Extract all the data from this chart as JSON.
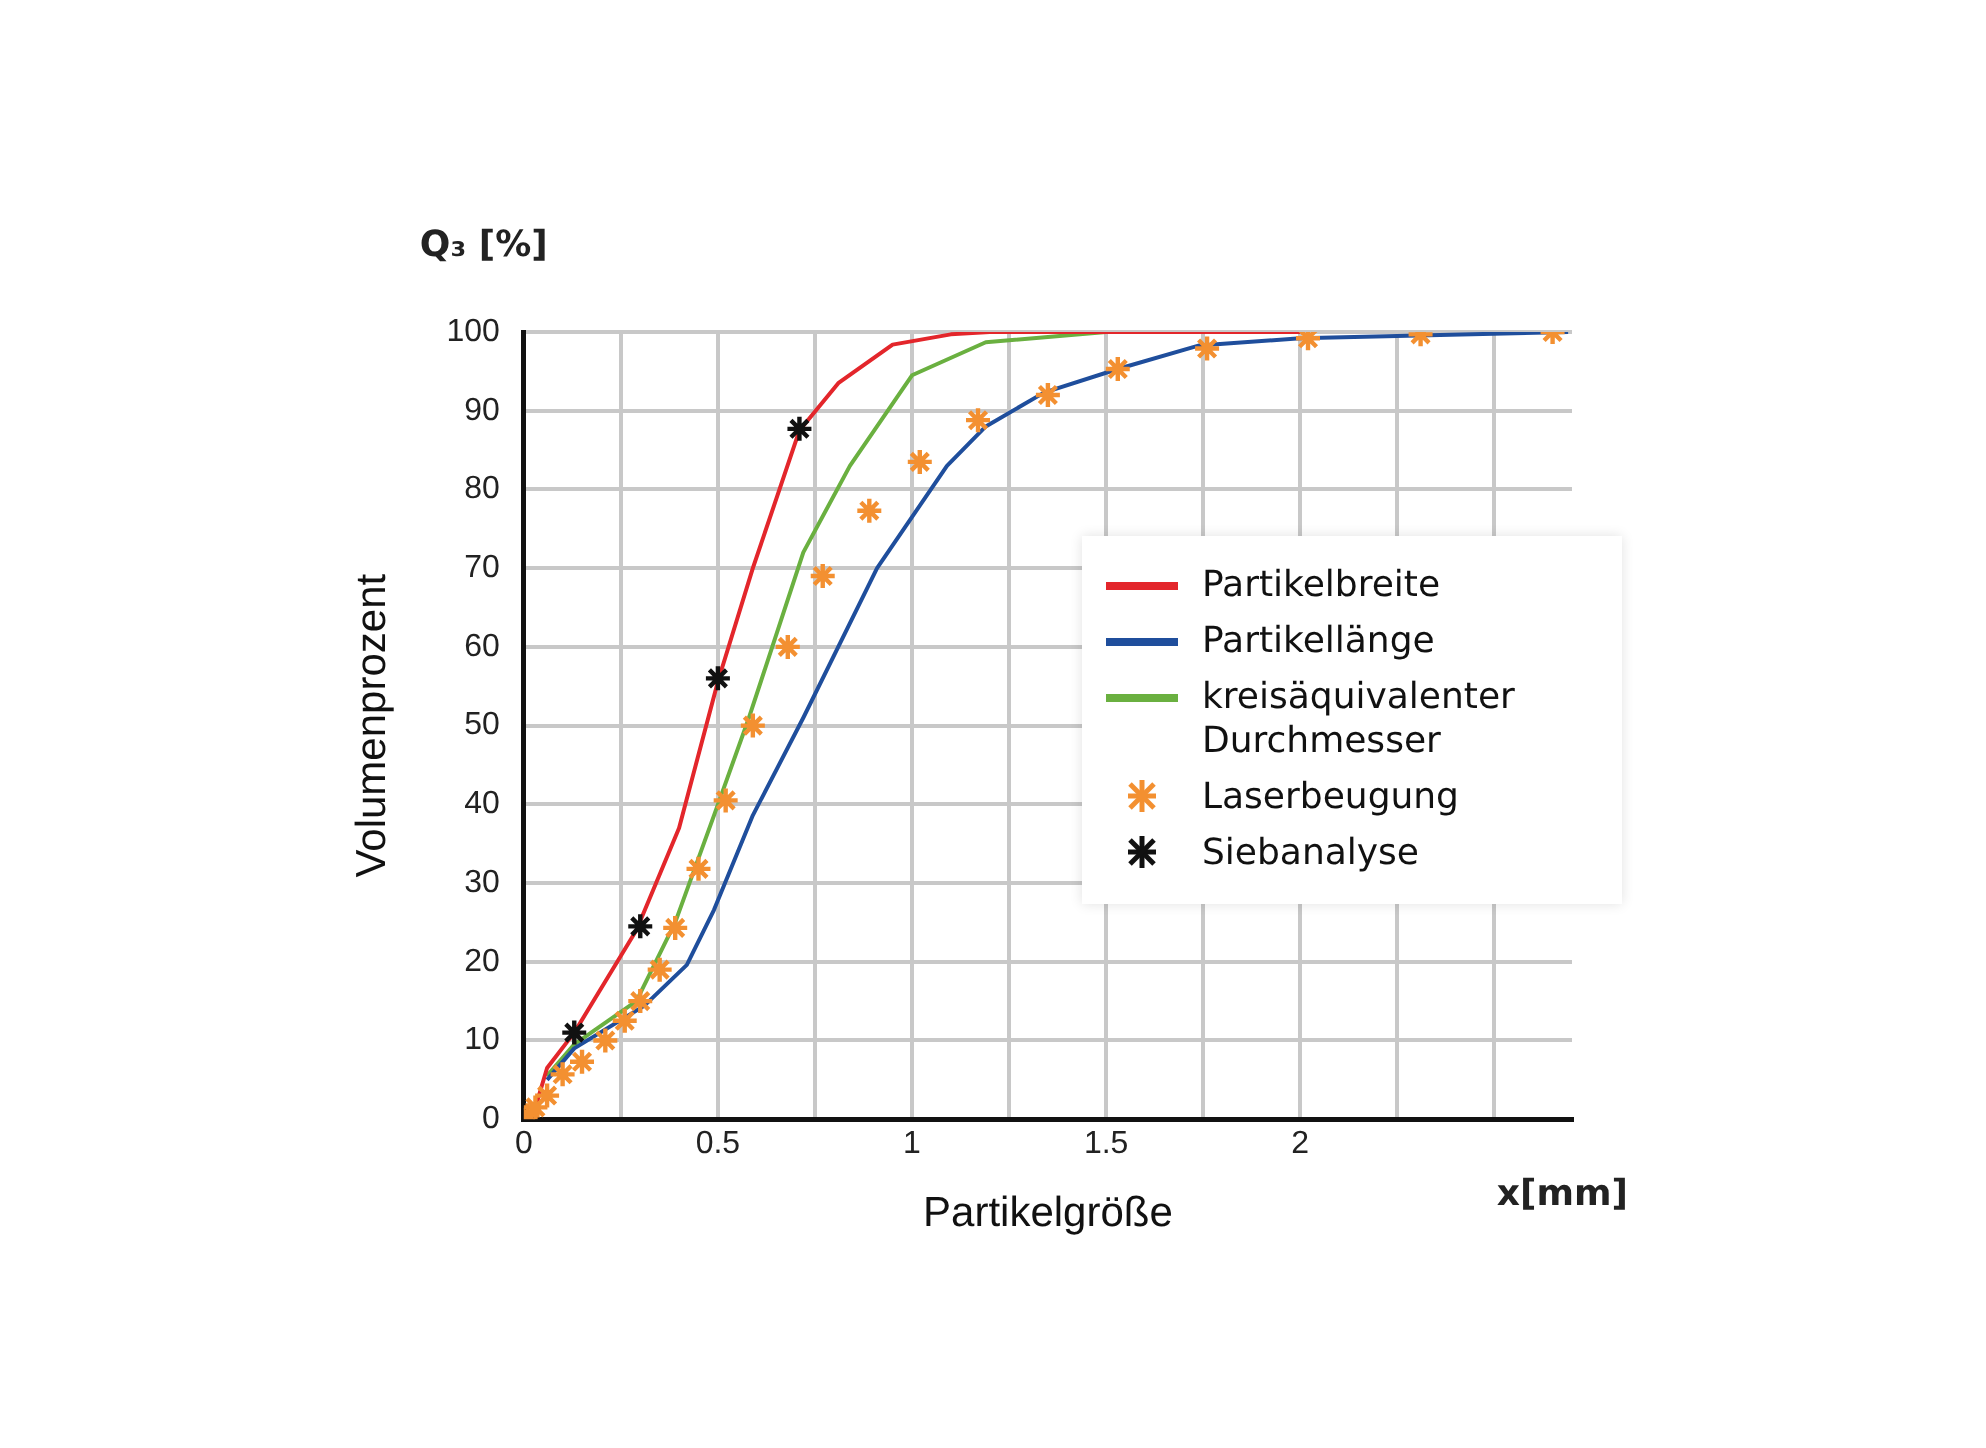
{
  "chart_data": {
    "type": "line",
    "xlabel": "Partikelgröße",
    "ylabel": "Volumenprozent",
    "annotations": [
      "Q₃ [%]",
      "x[mm]"
    ],
    "xlim": [
      0,
      2.7
    ],
    "ylim": [
      0,
      100
    ],
    "xticks": [
      0,
      {
        "value": 0.25,
        "label": null
      },
      0.5,
      {
        "value": 0.75,
        "label": null
      },
      1,
      {
        "value": 1.25,
        "label": null
      },
      1.5,
      {
        "value": 1.75,
        "label": null
      },
      2,
      {
        "value": 2.25,
        "label": null
      },
      {
        "value": 2.5,
        "label": null
      }
    ],
    "yticks": [
      0,
      10,
      20,
      30,
      40,
      50,
      60,
      70,
      80,
      90,
      100
    ],
    "grid": true,
    "legend": "right",
    "line_style": "solid",
    "series": [
      {
        "name": "Partikelbreite",
        "color": "#e3262b",
        "x": [
          0.03,
          0.06,
          0.13,
          0.29,
          0.4,
          0.5,
          0.59,
          0.71,
          0.81,
          0.95,
          1.1,
          1.2,
          1.5,
          2.0
        ],
        "values": [
          1.5,
          6.5,
          11,
          24,
          37,
          55.6,
          70,
          87.5,
          93.5,
          98.4,
          99.7,
          100,
          100,
          100
        ]
      },
      {
        "name": "Partikellänge",
        "color": "#1f4e9c",
        "x": [
          0.06,
          0.13,
          0.31,
          0.42,
          0.49,
          0.59,
          0.72,
          0.91,
          1.09,
          1.19,
          1.34,
          1.53,
          1.74,
          2.0,
          2.69
        ],
        "values": [
          5,
          9,
          14.4,
          19.6,
          26.6,
          38.6,
          51,
          70,
          83,
          88,
          92.3,
          95.3,
          98.3,
          99.2,
          100
        ]
      },
      {
        "name": "kreisäquivalenter Durchmesser",
        "color": "#6ab040",
        "x": [
          0.06,
          0.13,
          0.29,
          0.39,
          0.49,
          0.58,
          0.72,
          0.84,
          1.0,
          1.19,
          1.5,
          1.96
        ],
        "values": [
          5.5,
          9.5,
          15,
          25,
          38.6,
          51,
          72,
          83,
          94.5,
          98.7,
          100,
          100
        ]
      },
      {
        "name": "Laserbeugung",
        "type": "scatter",
        "marker": "cross",
        "color": "#f39031",
        "x": [
          0.01,
          0.03,
          0.06,
          0.1,
          0.15,
          0.21,
          0.26,
          0.3,
          0.35,
          0.39,
          0.45,
          0.52,
          0.59,
          0.68,
          0.77,
          0.89,
          1.02,
          1.17,
          1.35,
          1.53,
          1.76,
          2.02,
          2.31,
          2.65
        ],
        "values": [
          0.5,
          1.5,
          3,
          5.7,
          7.3,
          10,
          12.5,
          15,
          19,
          24.3,
          31.8,
          40.5,
          50,
          60,
          69,
          77.3,
          83.5,
          88.8,
          92,
          95.3,
          97.9,
          99.2,
          99.7,
          100
        ]
      },
      {
        "name": "Siebanalyse",
        "type": "scatter",
        "marker": "cross",
        "color": "#111111",
        "x": [
          0.13,
          0.3,
          0.5,
          0.71
        ],
        "values": [
          11,
          24.5,
          56,
          87.7
        ]
      }
    ]
  }
}
